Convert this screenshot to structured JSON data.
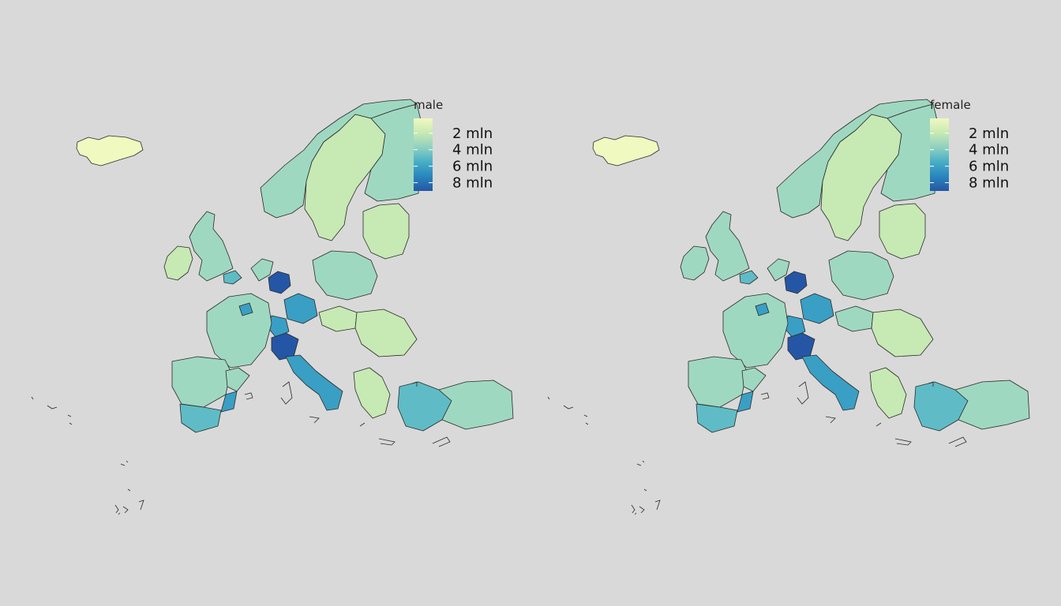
{
  "panels": [
    {
      "id": "male",
      "legend_title": "male",
      "legend_labels": [
        "2 mln",
        "4 mln",
        "6 mln",
        "8 mln"
      ]
    },
    {
      "id": "female",
      "legend_title": "female",
      "legend_labels": [
        "2 mln",
        "4 mln",
        "6 mln",
        "8 mln"
      ]
    }
  ],
  "palette": {
    "background": "#d9d9d9",
    "scale": [
      "#f0f9c0",
      "#c7e9b4",
      "#9fd8c0",
      "#5fbcc6",
      "#3a9fc4",
      "#2a7fb8",
      "#2556a6"
    ]
  },
  "chart_data": [
    {
      "type": "choropleth",
      "title": "male",
      "legend": {
        "title": "male",
        "ticks_mln": [
          2,
          4,
          6,
          8
        ],
        "range_mln": [
          0.2,
          9
        ]
      },
      "regions": [
        {
          "name": "Iceland",
          "value_mln": 0.2
        },
        {
          "name": "Norway",
          "value_mln": 2.6
        },
        {
          "name": "Sweden north",
          "value_mln": 1.0
        },
        {
          "name": "Finland",
          "value_mln": 2.7
        },
        {
          "name": "Ireland",
          "value_mln": 2.4
        },
        {
          "name": "Great Britain",
          "value_mln": 3.5
        },
        {
          "name": "London",
          "value_mln": 4.4
        },
        {
          "name": "Netherlands",
          "value_mln": 3.6
        },
        {
          "name": "Nordrhein-Westfalen",
          "value_mln": 8.8
        },
        {
          "name": "Bayern",
          "value_mln": 6.4
        },
        {
          "name": "Baden-Wuerttemberg",
          "value_mln": 5.4
        },
        {
          "name": "Poland",
          "value_mln": 2.6
        },
        {
          "name": "Baltics",
          "value_mln": 1.0
        },
        {
          "name": "France",
          "value_mln": 2.6
        },
        {
          "name": "Ile-de-France",
          "value_mln": 5.9
        },
        {
          "name": "Spain centre",
          "value_mln": 2.8
        },
        {
          "name": "Andalucia",
          "value_mln": 4.2
        },
        {
          "name": "Cataluna",
          "value_mln": 3.7
        },
        {
          "name": "Valencia",
          "value_mln": 6.1
        },
        {
          "name": "Lombardia",
          "value_mln": 8.6
        },
        {
          "name": "Italy south",
          "value_mln": 6.3
        },
        {
          "name": "Hungary",
          "value_mln": 2.4
        },
        {
          "name": "Romania",
          "value_mln": 1.6
        },
        {
          "name": "Greece",
          "value_mln": 1.2
        },
        {
          "name": "Turkey west",
          "value_mln": 5.2
        },
        {
          "name": "Turkey east",
          "value_mln": 2.9
        }
      ]
    },
    {
      "type": "choropleth",
      "title": "female",
      "legend": {
        "title": "female",
        "ticks_mln": [
          2,
          4,
          6,
          8
        ],
        "range_mln": [
          0.2,
          9
        ]
      },
      "regions": [
        {
          "name": "Iceland",
          "value_mln": 0.2
        },
        {
          "name": "Norway",
          "value_mln": 2.6
        },
        {
          "name": "Sweden north",
          "value_mln": 1.0
        },
        {
          "name": "Finland",
          "value_mln": 2.8
        },
        {
          "name": "Ireland",
          "value_mln": 2.5
        },
        {
          "name": "Great Britain",
          "value_mln": 3.6
        },
        {
          "name": "London",
          "value_mln": 4.5
        },
        {
          "name": "Netherlands",
          "value_mln": 3.7
        },
        {
          "name": "Nordrhein-Westfalen",
          "value_mln": 9.0
        },
        {
          "name": "Bayern",
          "value_mln": 6.6
        },
        {
          "name": "Baden-Wuerttemberg",
          "value_mln": 5.5
        },
        {
          "name": "Poland",
          "value_mln": 2.8
        },
        {
          "name": "Baltics",
          "value_mln": 1.1
        },
        {
          "name": "France",
          "value_mln": 2.8
        },
        {
          "name": "Ile-de-France",
          "value_mln": 6.2
        },
        {
          "name": "Spain centre",
          "value_mln": 2.9
        },
        {
          "name": "Andalucia",
          "value_mln": 4.3
        },
        {
          "name": "Cataluna",
          "value_mln": 3.8
        },
        {
          "name": "Valencia",
          "value_mln": 6.2
        },
        {
          "name": "Lombardia",
          "value_mln": 8.9
        },
        {
          "name": "Italy south",
          "value_mln": 6.5
        },
        {
          "name": "Hungary",
          "value_mln": 2.5
        },
        {
          "name": "Romania",
          "value_mln": 1.7
        },
        {
          "name": "Greece",
          "value_mln": 1.2
        },
        {
          "name": "Turkey west",
          "value_mln": 5.3
        },
        {
          "name": "Turkey east",
          "value_mln": 3.0
        }
      ]
    }
  ]
}
